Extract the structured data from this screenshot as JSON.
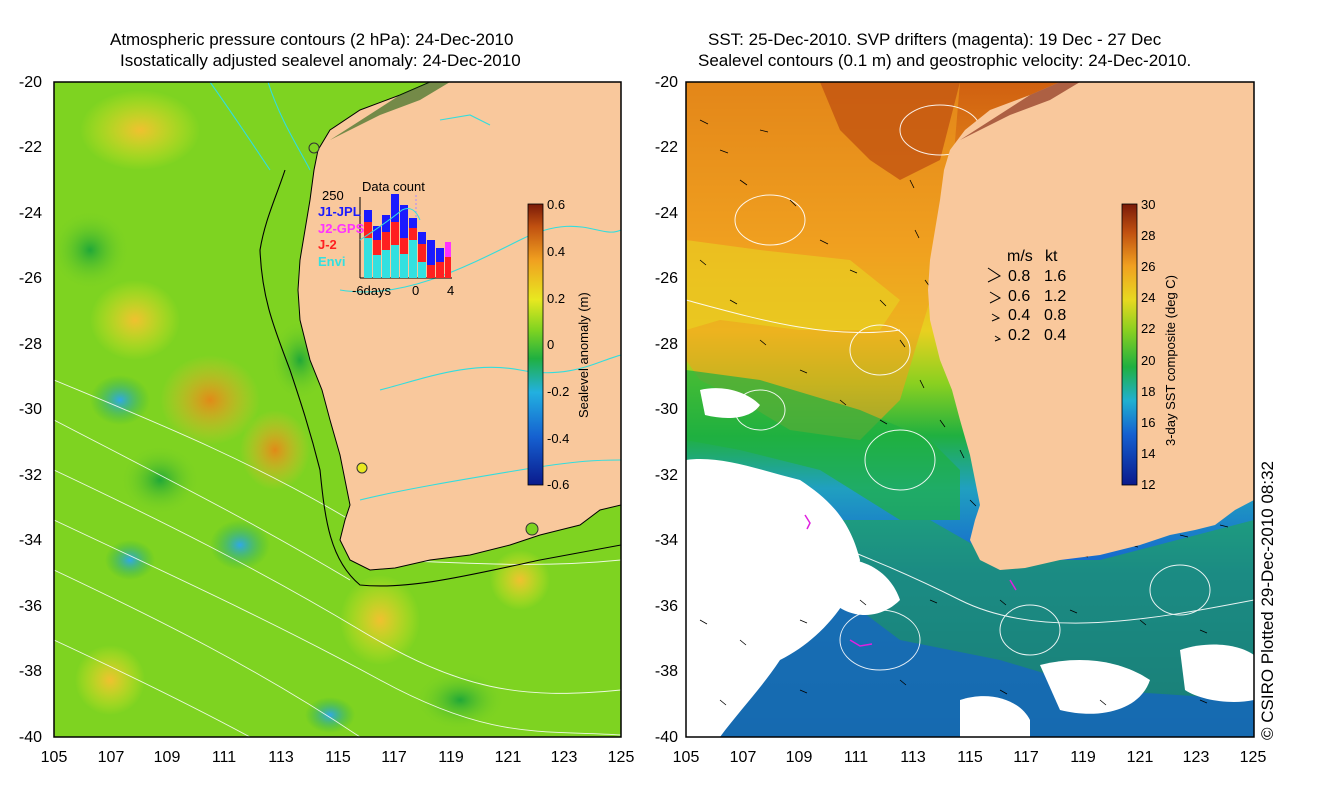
{
  "left_panel": {
    "title_line1": "Atmospheric pressure contours (2 hPa): 24-Dec-2010",
    "title_line2": "Isostatically adjusted sealevel anomaly: 24-Dec-2010",
    "colorbar": {
      "label": "Sealevel anomaly (m)",
      "ticks": [
        "0.6",
        "0.4",
        "0.2",
        "0",
        "-0.2",
        "-0.4",
        "-0.6"
      ]
    },
    "data_count": {
      "title": "Data count",
      "ymax_label": "250",
      "series": [
        "J1-JPL",
        "J2-GPS",
        "J-2",
        "Envi"
      ],
      "series_colors": [
        "#1a1aff",
        "#ff33ff",
        "#ff2020",
        "#33e0e0"
      ],
      "x_labels": [
        "-6days",
        "0",
        "4"
      ]
    }
  },
  "right_panel": {
    "title_line1": "SST: 25-Dec-2010. SVP drifters (magenta): 19 Dec - 27 Dec",
    "title_line2": "Sealevel contours (0.1 m) and geostrophic velocity: 24-Dec-2010.",
    "colorbar": {
      "label": "3-day SST composite (deg C)",
      "ticks": [
        "30",
        "28",
        "26",
        "24",
        "22",
        "20",
        "18",
        "16",
        "14",
        "12"
      ]
    },
    "speed_legend": {
      "header_ms": "m/s",
      "header_kt": "kt",
      "rows": [
        {
          "ms": "0.8",
          "kt": "1.6"
        },
        {
          "ms": "0.6",
          "kt": "1.2"
        },
        {
          "ms": "0.4",
          "kt": "0.8"
        },
        {
          "ms": "0.2",
          "kt": "0.4"
        }
      ]
    }
  },
  "axes": {
    "lat_labels": [
      "-20",
      "-22",
      "-24",
      "-26",
      "-28",
      "-30",
      "-32",
      "-34",
      "-36",
      "-38",
      "-40"
    ],
    "lon_labels": [
      "105",
      "107",
      "109",
      "111",
      "113",
      "115",
      "117",
      "119",
      "121",
      "123",
      "125"
    ]
  },
  "credit": "© CSIRO Plotted 29-Dec-2010 08:32",
  "colors": {
    "land": "#f9c89c",
    "coast": "#000000",
    "contour_cyan": "#33dddd"
  }
}
